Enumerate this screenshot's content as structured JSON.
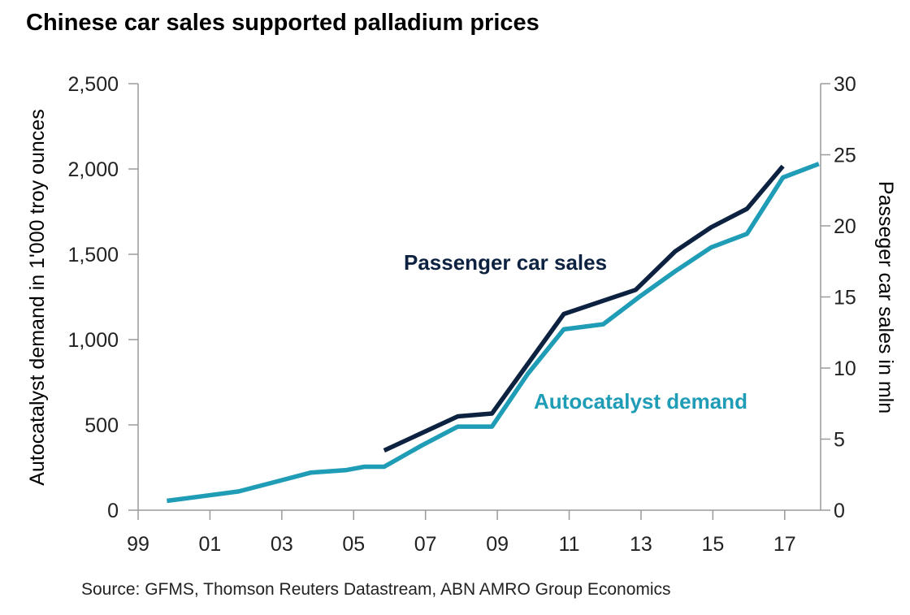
{
  "title": "Chinese car sales supported palladium prices",
  "source": "Source: GFMS, Thomson Reuters Datastream, ABN AMRO Group Economics",
  "colors": {
    "car_sales": "#0d2240",
    "autocatalyst": "#1f9cb6",
    "axis": "#9a9a9a"
  },
  "chart_data": {
    "type": "line",
    "title": "Chinese car sales supported palladium prices",
    "x_ticks": [
      "99",
      "01",
      "03",
      "05",
      "07",
      "09",
      "11",
      "13",
      "15",
      "17"
    ],
    "x_range": [
      1999,
      2018.0
    ],
    "y_left": {
      "label": "Autocatalyst demand in 1'000 troy ounces",
      "range": [
        0,
        2500
      ],
      "ticks": [
        "0",
        "500",
        "1,000",
        "1,500",
        "2,000",
        "2,500"
      ]
    },
    "y_right": {
      "label": "Passeger car sales in mln",
      "range": [
        0,
        30
      ],
      "ticks": [
        "0",
        "5",
        "10",
        "15",
        "20",
        "25",
        "30"
      ]
    },
    "grid": false,
    "series": [
      {
        "name": "Passenger car sales",
        "axis": "right",
        "x": [
          2005.85,
          2007.9,
          2008.85,
          2010.85,
          2012.85,
          2013.95,
          2014.95,
          2015.95,
          2016.95
        ],
        "y": [
          4.2,
          6.6,
          6.8,
          13.8,
          15.5,
          18.2,
          19.9,
          21.2,
          24.2
        ]
      },
      {
        "name": "Autocatalyst demand",
        "axis": "left",
        "x": [
          1999.8,
          2001.8,
          2002.8,
          2003.8,
          2004.8,
          2005.3,
          2005.85,
          2006.9,
          2007.9,
          2008.85,
          2009.85,
          2010.85,
          2011.95,
          2012.95,
          2013.95,
          2014.95,
          2015.95,
          2016.95,
          2017.95
        ],
        "y": [
          55,
          110,
          165,
          220,
          235,
          255,
          255,
          380,
          490,
          490,
          800,
          1060,
          1090,
          1250,
          1400,
          1540,
          1620,
          1950,
          2030
        ]
      }
    ]
  }
}
